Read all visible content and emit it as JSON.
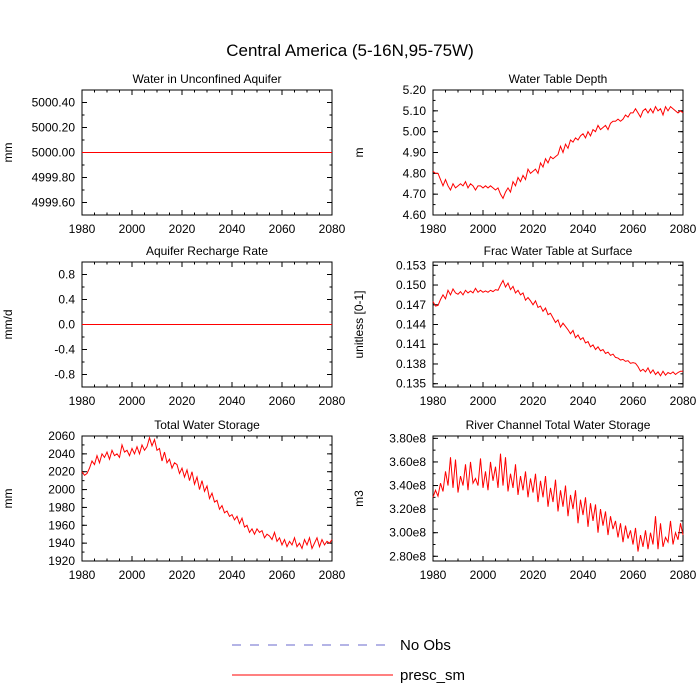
{
  "main_title": "Central America (5-16N,95-75W)",
  "colors": {
    "series": "#ff0000",
    "obs": "#6a6acd",
    "axis": "#000000"
  },
  "legend": [
    {
      "label": "No Obs",
      "style": "dashed",
      "color": "#6a6acd"
    },
    {
      "label": "presc_sm",
      "style": "solid",
      "color": "#ff0000"
    }
  ],
  "chart_data": [
    {
      "type": "line",
      "title": "Water in Unconfined Aquifer",
      "ylabel": "mm",
      "xlabel": "",
      "xlim": [
        1980,
        2080
      ],
      "ylim": [
        4999.5,
        5000.5
      ],
      "xticks": [
        1980,
        2000,
        2020,
        2040,
        2060,
        2080
      ],
      "yticks": [
        4999.6,
        4999.8,
        5000.0,
        5000.2,
        5000.4
      ],
      "ytick_labels": [
        "4999.60",
        "4999.80",
        "5000.00",
        "5000.20",
        "5000.40"
      ],
      "series": [
        {
          "name": "presc_sm",
          "x": [
            1980,
            2080
          ],
          "values": [
            5000.0,
            5000.0
          ]
        }
      ]
    },
    {
      "type": "line",
      "title": "Water Table Depth",
      "ylabel": "m",
      "xlabel": "",
      "xlim": [
        1980,
        2080
      ],
      "ylim": [
        4.6,
        5.2
      ],
      "xticks": [
        1980,
        2000,
        2020,
        2040,
        2060,
        2080
      ],
      "yticks": [
        4.6,
        4.7,
        4.8,
        4.9,
        5.0,
        5.1,
        5.2
      ],
      "ytick_labels": [
        "4.60",
        "4.70",
        "4.80",
        "4.90",
        "5.00",
        "5.10",
        "5.20"
      ],
      "series": [
        {
          "name": "presc_sm",
          "x_start": 1980,
          "x_step": 1,
          "values": [
            4.81,
            4.8,
            4.8,
            4.77,
            4.74,
            4.77,
            4.74,
            4.72,
            4.75,
            4.73,
            4.74,
            4.75,
            4.74,
            4.76,
            4.73,
            4.75,
            4.74,
            4.72,
            4.74,
            4.74,
            4.73,
            4.74,
            4.73,
            4.74,
            4.73,
            4.72,
            4.73,
            4.7,
            4.68,
            4.71,
            4.73,
            4.71,
            4.76,
            4.74,
            4.78,
            4.76,
            4.79,
            4.77,
            4.82,
            4.8,
            4.81,
            4.82,
            4.8,
            4.85,
            4.83,
            4.87,
            4.85,
            4.88,
            4.87,
            4.88,
            4.89,
            4.93,
            4.9,
            4.94,
            4.92,
            4.96,
            4.95,
            4.97,
            4.96,
            4.98,
            4.99,
            4.97,
            5.0,
            4.98,
            5.01,
            5.0,
            5.03,
            5.01,
            5.02,
            5.03,
            5.01,
            5.04,
            5.05,
            5.05,
            5.06,
            5.05,
            5.06,
            5.08,
            5.07,
            5.09,
            5.09,
            5.11,
            5.09,
            5.07,
            5.1,
            5.11,
            5.09,
            5.11,
            5.09,
            5.12,
            5.1,
            5.11,
            5.08,
            5.12,
            5.1,
            5.12,
            5.11,
            5.1,
            5.09,
            5.1,
            5.09
          ]
        }
      ]
    },
    {
      "type": "line",
      "title": "Aquifer Recharge Rate",
      "ylabel": "mm/d",
      "xlabel": "",
      "xlim": [
        1980,
        2080
      ],
      "ylim": [
        -1.0,
        1.0
      ],
      "xticks": [
        1980,
        2000,
        2020,
        2040,
        2060,
        2080
      ],
      "yticks": [
        -0.8,
        -0.4,
        0.0,
        0.4,
        0.8
      ],
      "ytick_labels": [
        "-0.8",
        "-0.4",
        "0.0",
        "0.4",
        "0.8"
      ],
      "series": [
        {
          "name": "presc_sm",
          "x": [
            1980,
            2080
          ],
          "values": [
            0.0,
            0.0
          ]
        }
      ]
    },
    {
      "type": "line",
      "title": "Frac Water Table at Surface",
      "ylabel": "unitless [0-1]",
      "xlabel": "",
      "xlim": [
        1980,
        2080
      ],
      "ylim": [
        0.1345,
        0.1535
      ],
      "xticks": [
        1980,
        2000,
        2020,
        2040,
        2060,
        2080
      ],
      "yticks": [
        0.135,
        0.138,
        0.141,
        0.144,
        0.147,
        0.15,
        0.153
      ],
      "ytick_labels": [
        "0.135",
        "0.138",
        "0.141",
        "0.144",
        "0.147",
        "0.150",
        "0.153"
      ],
      "series": [
        {
          "name": "presc_sm",
          "x_start": 1980,
          "x_step": 1,
          "values": [
            0.1475,
            0.1468,
            0.1469,
            0.1478,
            0.1485,
            0.1479,
            0.1492,
            0.1485,
            0.1494,
            0.1488,
            0.1486,
            0.149,
            0.1485,
            0.1492,
            0.1488,
            0.1491,
            0.1488,
            0.1495,
            0.1489,
            0.1492,
            0.1489,
            0.1491,
            0.1489,
            0.1492,
            0.149,
            0.1493,
            0.1492,
            0.15,
            0.1507,
            0.1497,
            0.1503,
            0.1493,
            0.1498,
            0.1488,
            0.1492,
            0.1485,
            0.1488,
            0.1477,
            0.1481,
            0.1476,
            0.147,
            0.1476,
            0.1466,
            0.1468,
            0.146,
            0.1465,
            0.1455,
            0.1457,
            0.145,
            0.1443,
            0.1447,
            0.1436,
            0.1442,
            0.1437,
            0.1432,
            0.1426,
            0.1431,
            0.142,
            0.1424,
            0.1417,
            0.142,
            0.1412,
            0.1414,
            0.1406,
            0.1409,
            0.1402,
            0.1406,
            0.14,
            0.1402,
            0.1396,
            0.1398,
            0.1393,
            0.1395,
            0.139,
            0.1389,
            0.1386,
            0.1387,
            0.1384,
            0.1385,
            0.1381,
            0.1382,
            0.1381,
            0.1376,
            0.1369,
            0.1372,
            0.1368,
            0.1374,
            0.1366,
            0.1371,
            0.1364,
            0.1368,
            0.1362,
            0.1369,
            0.1363,
            0.1367,
            0.1365,
            0.1368,
            0.1364,
            0.1367,
            0.1369,
            0.1369
          ]
        }
      ]
    },
    {
      "type": "line",
      "title": "Total Water Storage",
      "ylabel": "mm",
      "xlabel": "",
      "xlim": [
        1980,
        2080
      ],
      "ylim": [
        1920,
        2060
      ],
      "xticks": [
        1980,
        2000,
        2020,
        2040,
        2060,
        2080
      ],
      "yticks": [
        1920,
        1940,
        1960,
        1980,
        2000,
        2020,
        2040,
        2060
      ],
      "ytick_labels": [
        "1920",
        "1940",
        "1960",
        "1980",
        "2000",
        "2020",
        "2040",
        "2060"
      ],
      "series": [
        {
          "name": "presc_sm",
          "x_start": 1980,
          "x_step": 1,
          "values": [
            2020,
            2016,
            2018,
            2024,
            2032,
            2028,
            2038,
            2030,
            2040,
            2036,
            2042,
            2034,
            2044,
            2038,
            2040,
            2036,
            2050,
            2042,
            2044,
            2038,
            2046,
            2040,
            2048,
            2040,
            2050,
            2044,
            2048,
            2058,
            2049,
            2056,
            2044,
            2046,
            2032,
            2042,
            2030,
            2034,
            2024,
            2030,
            2028,
            2018,
            2024,
            2014,
            2022,
            2010,
            2020,
            2006,
            2014,
            2000,
            2010,
            1998,
            2004,
            1990,
            1996,
            1986,
            1988,
            1978,
            1982,
            1974,
            1976,
            1970,
            1972,
            1966,
            1970,
            1962,
            1968,
            1958,
            1960,
            1952,
            1956,
            1950,
            1956,
            1952,
            1954,
            1946,
            1950,
            1948,
            1944,
            1952,
            1942,
            1946,
            1938,
            1944,
            1936,
            1942,
            1938,
            1946,
            1936,
            1940,
            1934,
            1944,
            1938,
            1946,
            1934,
            1940,
            1946,
            1936,
            1944,
            1938,
            1942,
            1940,
            1944
          ]
        }
      ]
    },
    {
      "type": "line",
      "title": "River Channel Total Water Storage",
      "ylabel": "m3",
      "xlabel": "",
      "xlim": [
        1980,
        2080
      ],
      "ylim": [
        276000000.0,
        382000000.0
      ],
      "xticks": [
        1980,
        2000,
        2020,
        2040,
        2060,
        2080
      ],
      "yticks": [
        280000000.0,
        300000000.0,
        320000000.0,
        340000000.0,
        360000000.0,
        380000000.0
      ],
      "ytick_labels": [
        "2.80e8",
        "3.00e8",
        "3.20e8",
        "3.40e8",
        "3.60e8",
        "3.80e8"
      ],
      "series": [
        {
          "name": "presc_sm",
          "x_start": 1980,
          "x_step": 1,
          "values": [
            330000000.0,
            336000000.0,
            331000000.0,
            342000000.0,
            335000000.0,
            352000000.0,
            340000000.0,
            364000000.0,
            338000000.0,
            362000000.0,
            334000000.0,
            348000000.0,
            340000000.0,
            358000000.0,
            336000000.0,
            360000000.0,
            342000000.0,
            346000000.0,
            340000000.0,
            363000000.0,
            338000000.0,
            352000000.0,
            336000000.0,
            360000000.0,
            344000000.0,
            356000000.0,
            338000000.0,
            367000000.0,
            340000000.0,
            364000000.0,
            335000000.0,
            350000000.0,
            338000000.0,
            358000000.0,
            332000000.0,
            348000000.0,
            336000000.0,
            352000000.0,
            330000000.0,
            346000000.0,
            334000000.0,
            350000000.0,
            326000000.0,
            344000000.0,
            330000000.0,
            348000000.0,
            322000000.0,
            338000000.0,
            326000000.0,
            345000000.0,
            318000000.0,
            336000000.0,
            322000000.0,
            340000000.0,
            314000000.0,
            332000000.0,
            320000000.0,
            336000000.0,
            308000000.0,
            328000000.0,
            315000000.0,
            330000000.0,
            305000000.0,
            325000000.0,
            310000000.0,
            324000000.0,
            300000000.0,
            320000000.0,
            306000000.0,
            318000000.0,
            298000000.0,
            314000000.0,
            303000000.0,
            310000000.0,
            296000000.0,
            308000000.0,
            292000000.0,
            306000000.0,
            295000000.0,
            302000000.0,
            290000000.0,
            304000000.0,
            284000000.0,
            298000000.0,
            288000000.0,
            302000000.0,
            286000000.0,
            300000000.0,
            290000000.0,
            314000000.0,
            286000000.0,
            308000000.0,
            288000000.0,
            296000000.0,
            292000000.0,
            310000000.0,
            290000000.0,
            300000000.0,
            294000000.0,
            308000000.0,
            298000000.0
          ]
        }
      ]
    }
  ]
}
